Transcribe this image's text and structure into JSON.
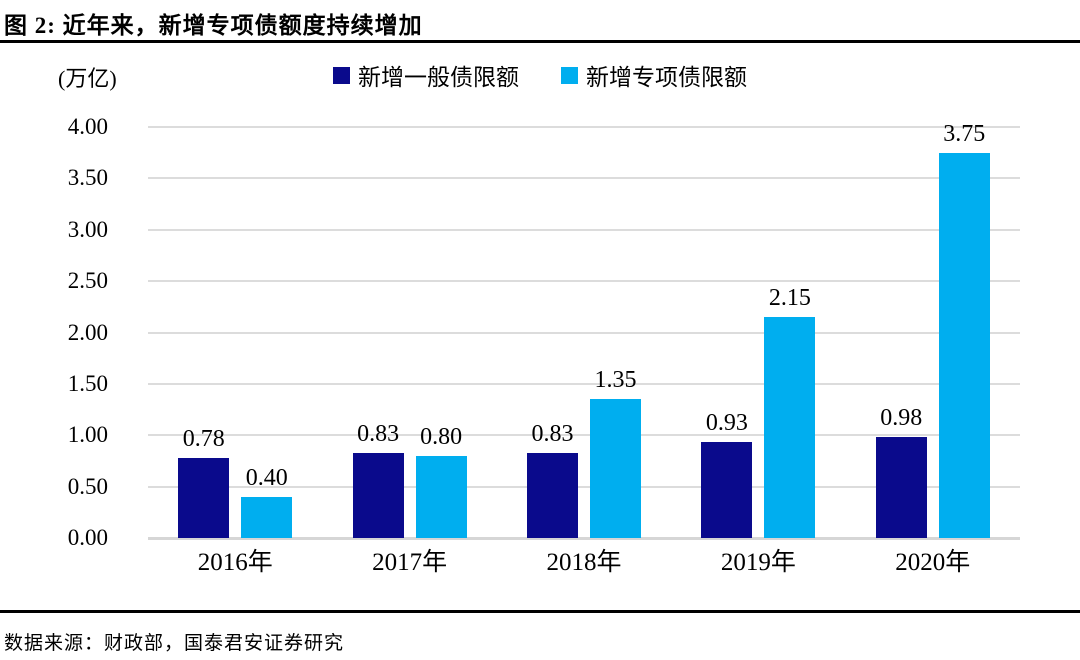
{
  "header": {
    "title": "图 2:  近年来，新增专项债额度持续增加"
  },
  "footer": {
    "source": "数据来源：财政部，国泰君安证券研究"
  },
  "chart_data": {
    "type": "bar",
    "title": "近年来，新增专项债额度持续增加",
    "unit_label": "(万亿)",
    "categories": [
      "2016年",
      "2017年",
      "2018年",
      "2019年",
      "2020年"
    ],
    "series": [
      {
        "name": "新增一般债限额",
        "color": "#0A0A8C",
        "values": [
          0.78,
          0.83,
          0.83,
          0.93,
          0.98
        ]
      },
      {
        "name": "新增专项债限额",
        "color": "#00AEEF",
        "values": [
          0.4,
          0.8,
          1.35,
          2.15,
          3.75
        ]
      }
    ],
    "ylim": [
      0,
      4.0
    ],
    "ytick_step": 0.5,
    "ytick_labels": [
      "0.00",
      "0.50",
      "1.00",
      "1.50",
      "2.00",
      "2.50",
      "3.00",
      "3.50",
      "4.00"
    ],
    "grid": true,
    "legend_position": "top",
    "value_labels": true,
    "colors": {
      "gridline": "#DCDCDC",
      "axis_line": "#D6D6D6",
      "text": "#000000"
    }
  }
}
